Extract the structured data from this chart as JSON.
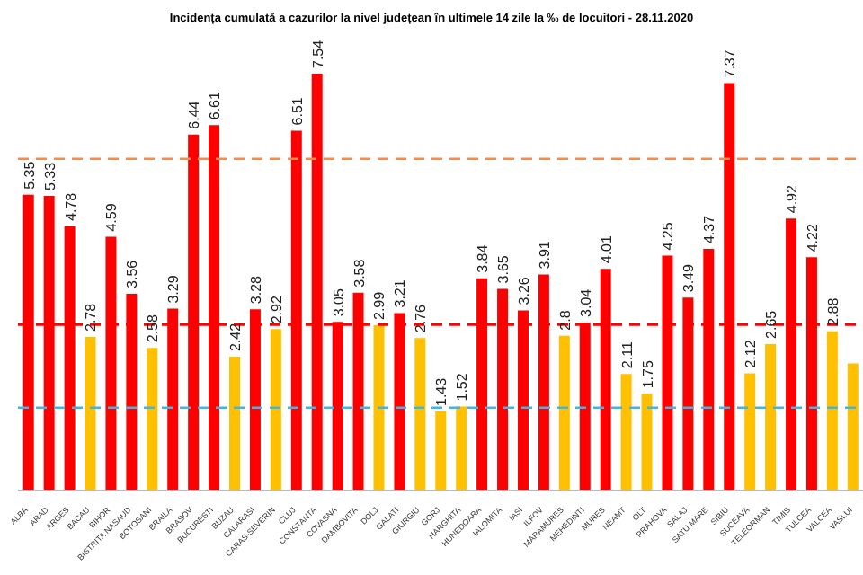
{
  "chart_data": {
    "type": "bar",
    "title": "Incidența cumulată a cazurilor la nivel județean în ultimele 14 zile la ‰ de locuitori - 28.11.2020",
    "categories": [
      "ALBA",
      "ARAD",
      "ARGES",
      "BACAU",
      "BIHOR",
      "BISTRITA NASAUD",
      "BOTOSANI",
      "BRAILA",
      "BRASOV",
      "BUCURESTI",
      "BUZAU",
      "CALARASI",
      "CARAS-SEVERIN",
      "CLUJ",
      "CONSTANTA",
      "COVASNA",
      "DAMBOVITA",
      "DOLJ",
      "GALATI",
      "GIURGIU",
      "GORJ",
      "HARGHITA",
      "HUNEDOARA",
      "IALOMITA",
      "IASI",
      "ILFOV",
      "MARAMURES",
      "MEHEDINTI",
      "MURES",
      "NEAMT",
      "OLT",
      "PRAHOVA",
      "SALAJ",
      "SATU MARE",
      "SIBIU",
      "SUCEAVA",
      "TELEORMAN",
      "TIMIS",
      "TULCEA",
      "VALCEA",
      "VASLUI"
    ],
    "values": [
      5.35,
      5.33,
      4.78,
      2.78,
      4.59,
      3.56,
      2.58,
      3.29,
      6.44,
      6.61,
      2.42,
      3.28,
      2.92,
      6.51,
      7.54,
      3.05,
      3.58,
      2.99,
      3.21,
      2.76,
      1.43,
      1.52,
      3.84,
      3.65,
      3.26,
      3.91,
      2.8,
      3.04,
      4.01,
      2.11,
      1.75,
      4.25,
      3.49,
      4.37,
      7.37,
      2.12,
      2.65,
      4.92,
      4.22,
      2.88,
      2.3
    ],
    "value_labels": [
      "5.35",
      "5.33",
      "4.78",
      "2.78",
      "4.59",
      "3.56",
      "2.58",
      "3.29",
      "6.44",
      "6.61",
      "2.42",
      "3.28",
      "2.92",
      "6.51",
      "7.54",
      "3.05",
      "3.58",
      "2.99",
      "3.21",
      "2.76",
      "1.43",
      "1.52",
      "3.84",
      "3.65",
      "3.26",
      "3.91",
      "2.8",
      "3.04",
      "4.01",
      "2.11",
      "1.75",
      "4.25",
      "3.49",
      "4.37",
      "7.37",
      "2.12",
      "2.65",
      "4.92",
      "4.22",
      "2.88",
      null
    ],
    "colors": [
      "#ff0000",
      "#ff0000",
      "#ff0000",
      "#ffc000",
      "#ff0000",
      "#ff0000",
      "#ffc000",
      "#ff0000",
      "#ff0000",
      "#ff0000",
      "#ffc000",
      "#ff0000",
      "#ffc000",
      "#ff0000",
      "#ff0000",
      "#ff0000",
      "#ff0000",
      "#ffc000",
      "#ff0000",
      "#ffc000",
      "#ffc000",
      "#ffc000",
      "#ff0000",
      "#ff0000",
      "#ff0000",
      "#ff0000",
      "#ffc000",
      "#ff0000",
      "#ff0000",
      "#ffc000",
      "#ffc000",
      "#ff0000",
      "#ff0000",
      "#ff0000",
      "#ff0000",
      "#ffc000",
      "#ffc000",
      "#ff0000",
      "#ff0000",
      "#ffc000",
      "#ffc000"
    ],
    "tick_labels": "x",
    "grid": false,
    "legend": false,
    "ref_lines": [
      {
        "axis": "y",
        "value": 6,
        "color": "#f58b4c",
        "line_style": "dashed"
      },
      {
        "axis": "y",
        "value": 3,
        "color": "#ff0000",
        "line_style": "dashed"
      },
      {
        "axis": "y",
        "value": 1.5,
        "color": "#3fb6e8",
        "line_style": "dashed"
      }
    ]
  }
}
